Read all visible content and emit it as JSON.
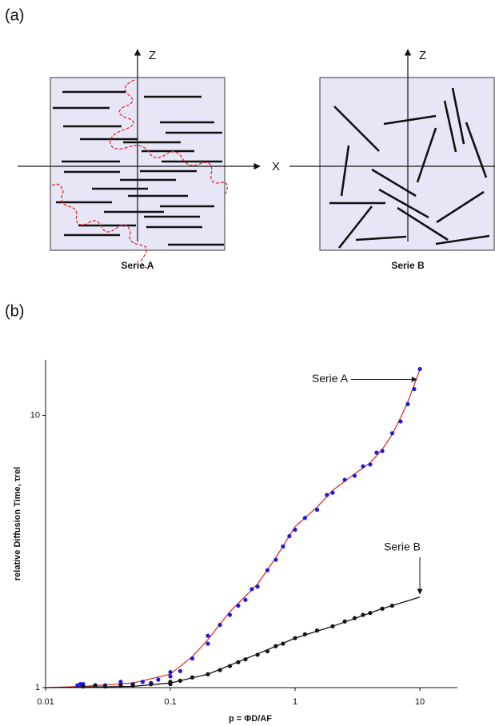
{
  "panel_a": {
    "label": "(a)",
    "z_label_left": "Z",
    "z_label_right": "Z",
    "x_label": "X",
    "caption_left": "Serie A",
    "caption_right": "Serie B"
  },
  "panel_b": {
    "label": "(b)"
  },
  "chart_data": {
    "type": "scatter",
    "x_label": "p = ΦD/AF",
    "y_label": "relative Diffusion Time, τrel",
    "xlim": [
      0.01,
      20
    ],
    "ylim": [
      1,
      16
    ],
    "log_x": true,
    "log_y": true,
    "xticks": [
      0.01,
      0.1,
      1,
      10
    ],
    "yticks": [
      1,
      10
    ],
    "series": [
      {
        "name": "Serie A",
        "color": "#1a1ae6",
        "line_color": "#e03030",
        "x": [
          0.018,
          0.019,
          0.02,
          0.02,
          0.025,
          0.03,
          0.04,
          0.05,
          0.06,
          0.07,
          0.08,
          0.1,
          0.1,
          0.12,
          0.15,
          0.2,
          0.2,
          0.25,
          0.3,
          0.35,
          0.4,
          0.45,
          0.5,
          0.6,
          0.7,
          0.8,
          0.9,
          1,
          1.2,
          1.5,
          1.8,
          2,
          2.5,
          3,
          3.5,
          4,
          4.5,
          5,
          6,
          7,
          8,
          9,
          10
        ],
        "values": [
          1.02,
          1.03,
          1.01,
          1.03,
          1.02,
          1.02,
          1.05,
          1.03,
          1.05,
          1.04,
          1.07,
          1.1,
          1.14,
          1.15,
          1.28,
          1.45,
          1.55,
          1.7,
          1.85,
          2.0,
          2.1,
          2.3,
          2.35,
          2.7,
          2.95,
          3.3,
          3.6,
          3.8,
          4.2,
          4.5,
          5.1,
          5.2,
          5.8,
          6.0,
          6.5,
          6.6,
          7.3,
          7.4,
          8.6,
          9.5,
          11.0,
          12.5,
          14.8
        ],
        "fit_x": [
          0.01,
          0.02,
          0.05,
          0.1,
          0.15,
          0.2,
          0.3,
          0.5,
          0.7,
          1,
          1.5,
          2,
          3,
          4,
          5,
          6,
          7,
          8,
          10
        ],
        "fit_values": [
          1.0,
          1.01,
          1.04,
          1.12,
          1.3,
          1.5,
          1.9,
          2.4,
          3.0,
          3.9,
          4.6,
          5.3,
          6.1,
          6.7,
          7.5,
          8.5,
          9.8,
          11.2,
          14.7
        ]
      },
      {
        "name": "Serie B",
        "color": "#111111",
        "line_color": "#111111",
        "x": [
          0.02,
          0.025,
          0.03,
          0.04,
          0.05,
          0.07,
          0.1,
          0.1,
          0.12,
          0.15,
          0.2,
          0.25,
          0.3,
          0.35,
          0.4,
          0.5,
          0.6,
          0.7,
          0.8,
          1,
          1.2,
          1.5,
          2,
          2.5,
          3,
          3.5,
          4,
          5,
          6
        ],
        "values": [
          1.01,
          1.02,
          1.01,
          1.02,
          1.02,
          1.03,
          1.03,
          1.05,
          1.06,
          1.09,
          1.12,
          1.16,
          1.2,
          1.24,
          1.27,
          1.32,
          1.36,
          1.42,
          1.45,
          1.52,
          1.57,
          1.62,
          1.68,
          1.75,
          1.8,
          1.85,
          1.88,
          1.95,
          2.0
        ],
        "fit_x": [
          0.01,
          0.05,
          0.1,
          0.2,
          0.5,
          1,
          2,
          5,
          10
        ],
        "fit_values": [
          1.0,
          1.01,
          1.04,
          1.12,
          1.33,
          1.52,
          1.68,
          1.95,
          2.15
        ]
      }
    ]
  }
}
